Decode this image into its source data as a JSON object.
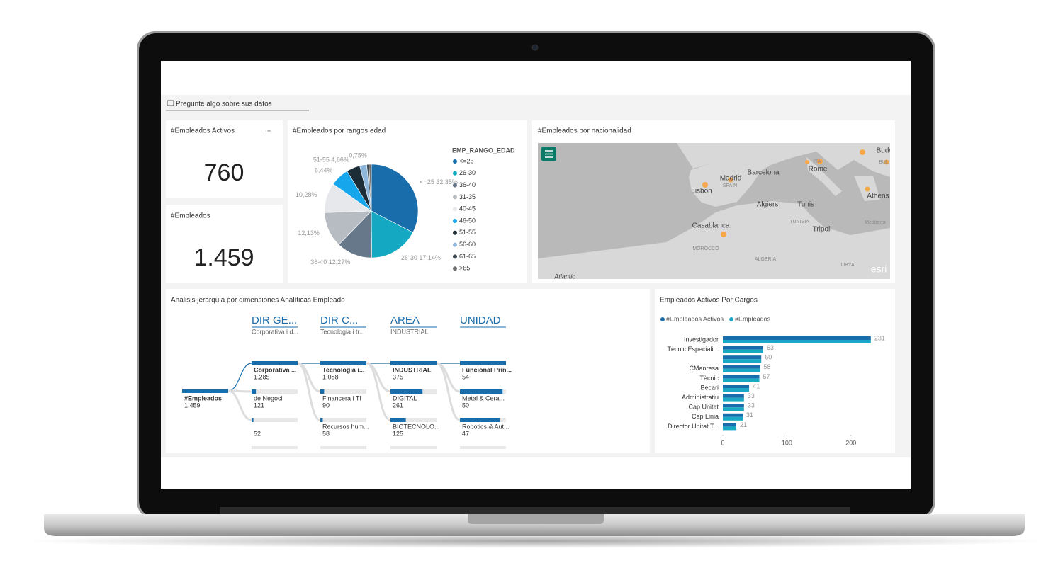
{
  "qa_prompt": "Pregunte algo sobre sus datos",
  "cards": [
    {
      "title": "#Empleados Activos",
      "menu": "...",
      "value": 760
    },
    {
      "title": "#Empleados",
      "value": 1459,
      "value_label": "1.459"
    }
  ],
  "chart_data": [
    {
      "type": "pie",
      "title": "#Empleados por rangos edad",
      "legend_title": "EMP_RANGO_EDAD",
      "categories": [
        "<=25",
        "26-30",
        "36-40",
        "31-35",
        "40-45",
        "46-50",
        "51-55",
        "56-60",
        "61-65",
        ">65"
      ],
      "values": [
        32.35,
        17.14,
        12.27,
        12.13,
        10.28,
        6.44,
        4.66,
        2.4,
        0.75,
        0.83
      ],
      "value_labels": [
        "<=25 32,35%",
        "26-30 17,14%",
        "36-40 12,27%",
        "12,13%",
        "10,28%",
        "6,44%",
        "51-55 4,66%",
        null,
        "0,75%",
        null
      ],
      "colors": [
        "#1a6dab",
        "#14a8c2",
        "#66788a",
        "#b7bcc2",
        "#e6e8eb",
        "#16a6ec",
        "#1c2d38",
        "#8db6da",
        "#3d4b56",
        "#707070"
      ]
    },
    {
      "type": "bar",
      "orientation": "horizontal",
      "title": "Empleados Activos Por Cargos",
      "categories": [
        "Investigador",
        "Tècnic Especiali...",
        null,
        "CManresa",
        "Tècnic",
        "Becari",
        "Administratiu",
        "Cap Unitat",
        "Cap Linia",
        "Director Unitat T..."
      ],
      "series": [
        {
          "name": "#Empleados Activos",
          "color": "#1a6dab",
          "values": [
            231,
            63,
            60,
            58,
            57,
            41,
            33,
            33,
            31,
            21
          ]
        },
        {
          "name": "#Empleados",
          "color": "#19a9c4",
          "values": [
            231,
            63,
            60,
            58,
            57,
            41,
            33,
            33,
            31,
            21
          ]
        }
      ],
      "labeled_series": 0,
      "xlim": [
        0,
        250
      ],
      "xticks": [
        0,
        100,
        200
      ]
    }
  ],
  "map": {
    "title": "#Empleados por nacionalidad",
    "labels": [
      "Madrid",
      "Barcelona",
      "Rome",
      "Lisbon",
      "Algiers",
      "Tunis",
      "Casablanca",
      "Tripoli",
      "Athens",
      "SPAIN",
      "MOROCCO",
      "ALGERIA",
      "TUNISIA",
      "LIBYA",
      "ITA",
      "Budv",
      "BUL",
      "Atlantic",
      "Mediterra",
      "esri"
    ]
  },
  "decomposition": {
    "title": "Análisis jerarquia por dimensiones Analíticas Empleado",
    "root": {
      "label": "#Empleados",
      "value": 1459,
      "value_label": "1.459"
    },
    "levels": [
      {
        "header": "DIR GE...",
        "selected": "Corporativa i d...",
        "nodes": [
          {
            "label": "Corporativa ...",
            "value": 1285,
            "value_label": "1.285"
          },
          {
            "label": "de Negoci",
            "value": 121
          },
          {
            "value": 52
          }
        ]
      },
      {
        "header": "DIR C...",
        "selected": "Tecnologia i tr...",
        "nodes": [
          {
            "label": "Tecnologia i...",
            "value": 1088,
            "value_label": "1.088"
          },
          {
            "label": "Financera i TI",
            "value": 90
          },
          {
            "label": "Recursos hum...",
            "value": 58
          }
        ]
      },
      {
        "header": "AREA",
        "selected": "INDUSTRIAL",
        "nodes": [
          {
            "label": "INDUSTRIAL",
            "value": 375
          },
          {
            "label": "DIGITAL",
            "value": 261
          },
          {
            "label": "BIOTECNOLO...",
            "value": 125
          }
        ]
      },
      {
        "header": "UNIDAD",
        "nodes": [
          {
            "label": "Funcional Prin...",
            "value": 54
          },
          {
            "label": "Metal & Cera...",
            "value": 50
          },
          {
            "label": "Robotics & Aut...",
            "value": 47
          }
        ]
      }
    ]
  }
}
